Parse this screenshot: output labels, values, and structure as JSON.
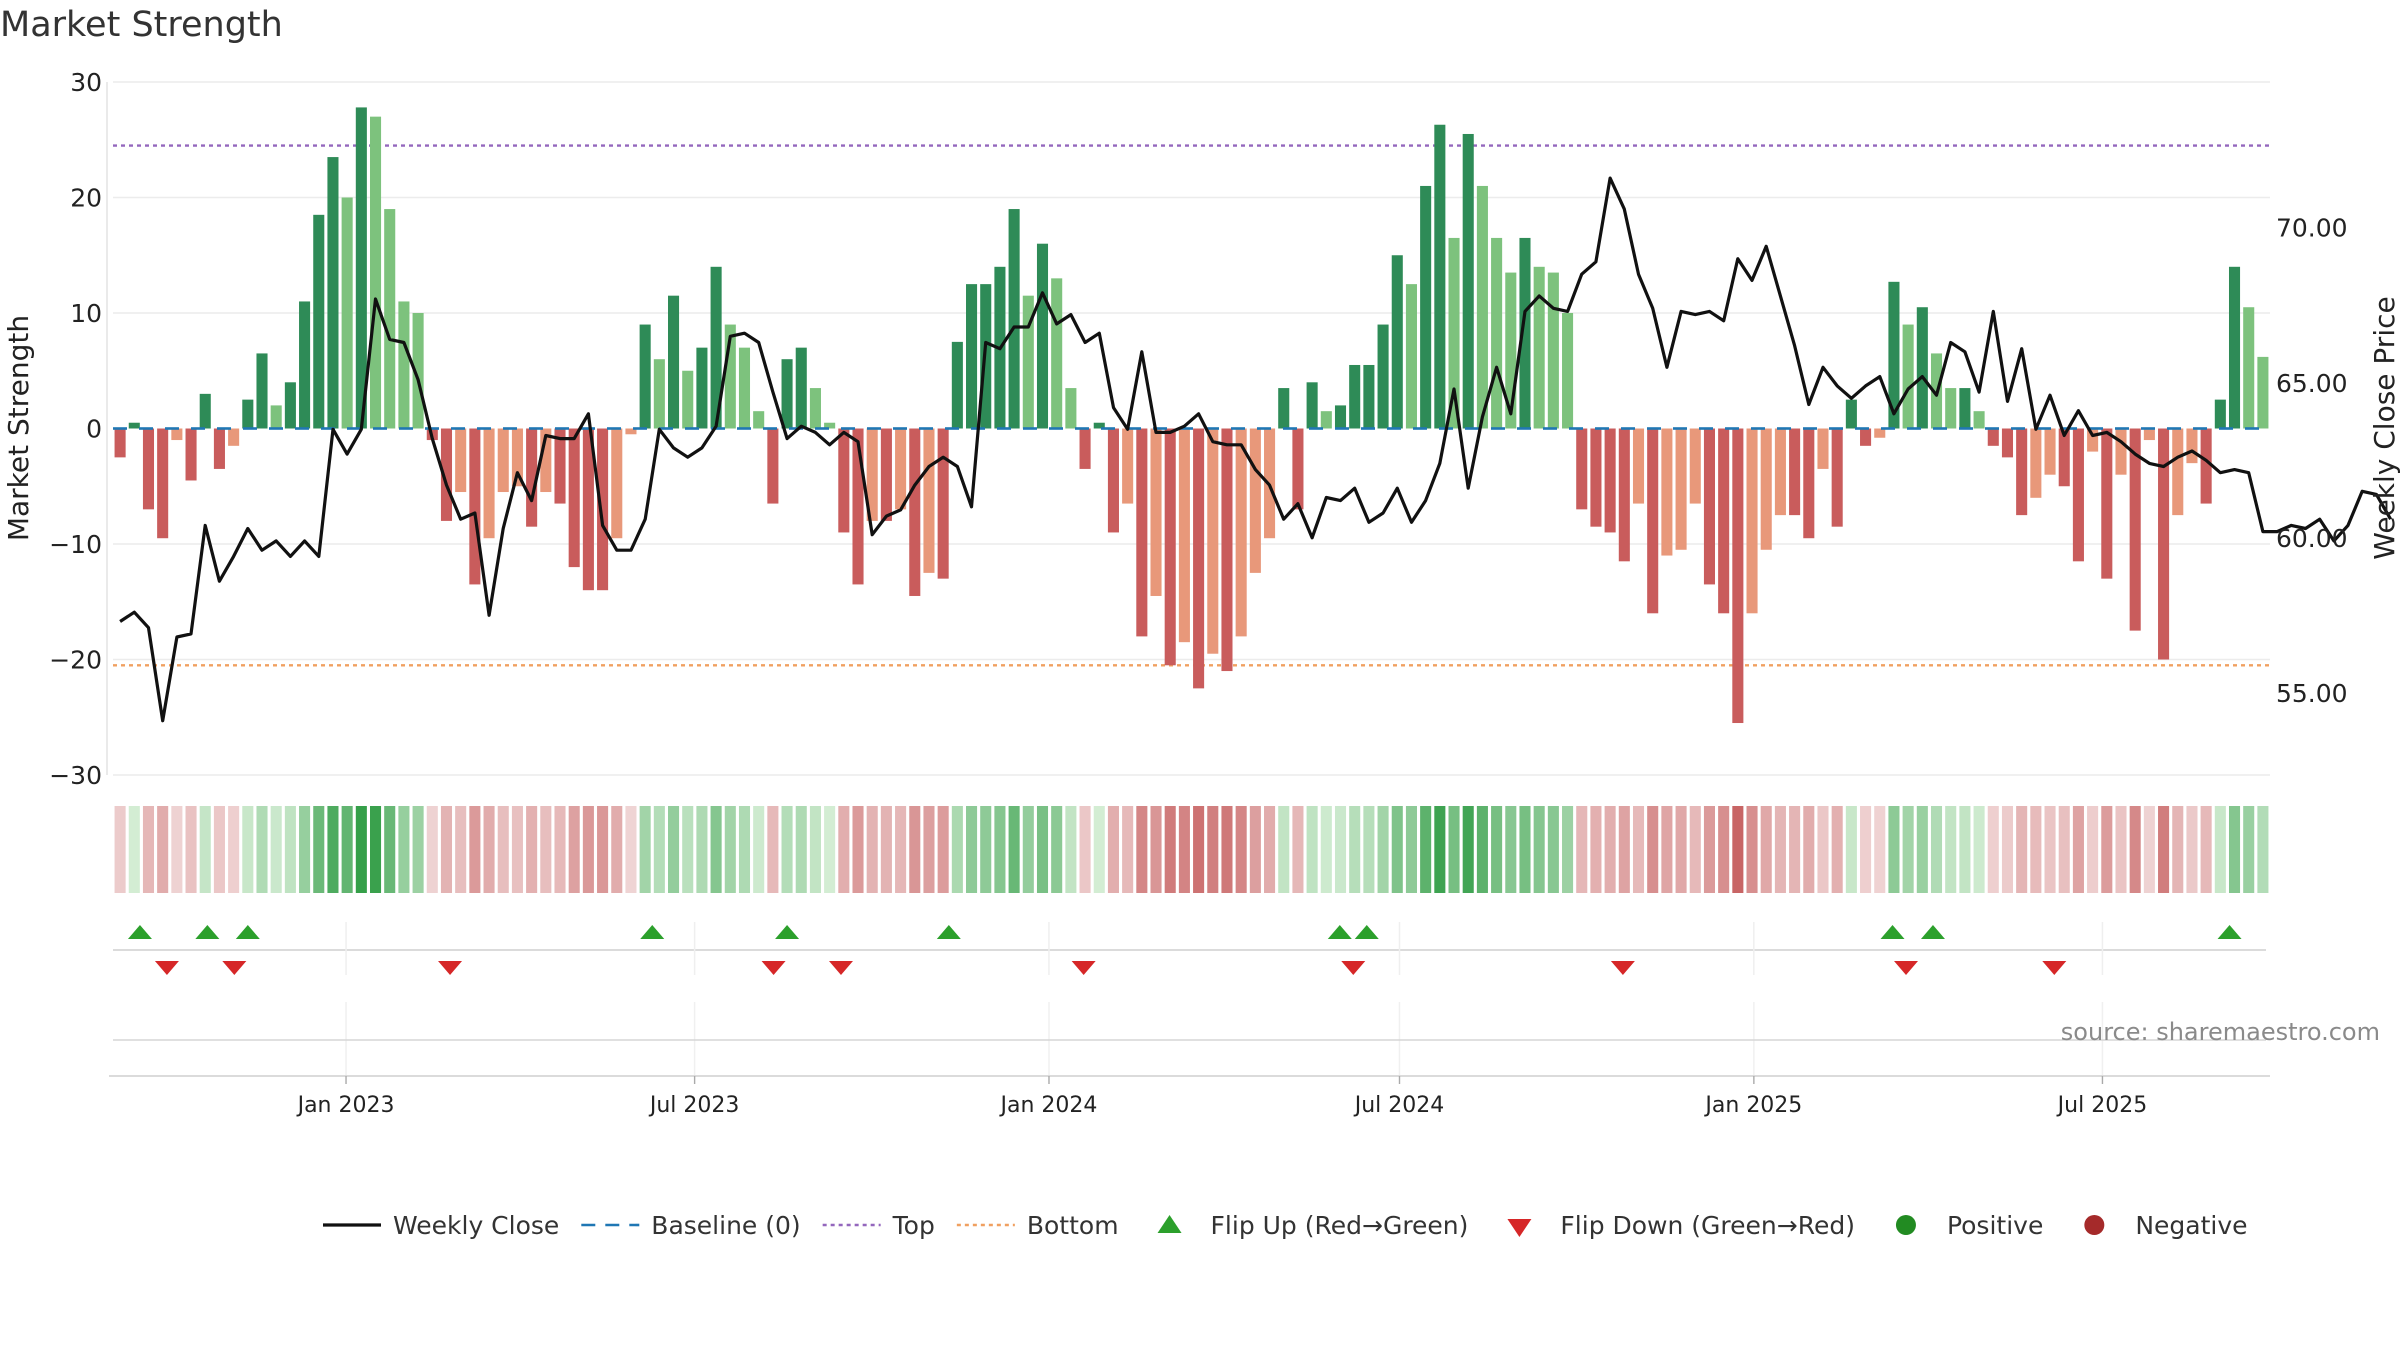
{
  "chart_data": {
    "type": "bar+line",
    "title": "Market Strength",
    "ylabel_left": "Market Strength",
    "ylabel_right": "Weekly Close Price",
    "source": "source: sharemaestro.com",
    "yticks_left": [
      "30",
      "20",
      "10",
      "0",
      "−10",
      "−20",
      "−30"
    ],
    "ylim_left": [
      -30,
      30
    ],
    "yticks_right": [
      "70.00",
      "65.00",
      "60.00",
      "55.00"
    ],
    "ylim_right": [
      52.35,
      74.7
    ],
    "x_start": "2022-09-02",
    "x_end": "2025-09-26",
    "x_ticks": [
      {
        "date": "2023-01-01",
        "label": "Jan 2023"
      },
      {
        "date": "2023-07-01",
        "label": "Jul 2023"
      },
      {
        "date": "2024-01-01",
        "label": "Jan 2024"
      },
      {
        "date": "2024-07-01",
        "label": "Jul 2024"
      },
      {
        "date": "2025-01-01",
        "label": "Jan 2025"
      },
      {
        "date": "2025-07-01",
        "label": "Jul 2025"
      }
    ],
    "top_level": 24.5,
    "bottom_level": -20.5,
    "strength": [
      -2.5,
      0.5,
      -7,
      -9.5,
      -1,
      -4.5,
      3,
      -3.5,
      -1.5,
      2.5,
      6.5,
      2,
      4,
      11,
      18.5,
      23.5,
      20,
      27.8,
      27,
      19,
      11,
      10,
      -1,
      -8,
      -5.5,
      -13.5,
      -9.5,
      -5.5,
      -5,
      -8.5,
      -5.5,
      -6.5,
      -12,
      -14,
      -14,
      -9.5,
      -0.5,
      9,
      6,
      11.5,
      5,
      7,
      14,
      9,
      7,
      1.5,
      -6.5,
      6,
      7,
      3.5,
      0.5,
      -9,
      -13.5,
      -8,
      -8,
      -7,
      -14.5,
      -12.5,
      -13,
      7.5,
      12.5,
      12.5,
      14,
      19,
      11.5,
      16,
      13,
      3.5,
      -3.5,
      0.5,
      -9,
      -6.5,
      -18,
      -14.5,
      -20.5,
      -18.5,
      -22.5,
      -19.5,
      -21,
      -18,
      -12.5,
      -9.5,
      3.5,
      -7,
      4,
      1.5,
      2,
      5.5,
      5.5,
      9,
      15,
      12.5,
      21,
      26.3,
      16.5,
      25.5,
      21,
      16.5,
      13.5,
      16.5,
      14,
      13.5,
      10,
      -7,
      -8.5,
      -9,
      -11.5,
      -6.5,
      -16,
      -11,
      -10.5,
      -6.5,
      -13.5,
      -16,
      -25.5,
      -16,
      -10.5,
      -7.5,
      -7.5,
      -9.5,
      -3.5,
      -8.5,
      2.5,
      -1.5,
      -0.8,
      12.7,
      9,
      10.5,
      6.5,
      3.5,
      3.5,
      1.5,
      -1.5,
      -2.5,
      -7.5,
      -6,
      -4,
      -5,
      -11.5,
      -2,
      -13,
      -4,
      -17.5,
      -1,
      -20,
      -7.5,
      -3,
      -6.5,
      2.5,
      14,
      10.5,
      6.2
    ],
    "weekly_close": [
      57.3,
      57.6,
      57.1,
      54.1,
      56.8,
      56.9,
      60.4,
      58.6,
      59.4,
      60.3,
      59.6,
      59.9,
      59.4,
      59.9,
      59.4,
      63.5,
      62.7,
      63.5,
      67.7,
      66.4,
      66.3,
      65.1,
      63.2,
      61.7,
      60.6,
      60.8,
      57.5,
      60.3,
      62.1,
      61.2,
      63.3,
      63.2,
      63.2,
      64.0,
      60.4,
      59.6,
      59.6,
      60.6,
      63.5,
      62.9,
      62.6,
      62.9,
      63.6,
      66.5,
      66.6,
      66.3,
      64.7,
      63.2,
      63.6,
      63.4,
      63.0,
      63.4,
      63.1,
      60.1,
      60.7,
      60.9,
      61.7,
      62.3,
      62.6,
      62.3,
      61.0,
      66.3,
      66.1,
      66.8,
      66.8,
      67.9,
      66.9,
      67.2,
      66.3,
      66.6,
      64.2,
      63.5,
      66.0,
      63.4,
      63.4,
      63.6,
      64.0,
      63.1,
      63.0,
      63.0,
      62.2,
      61.7,
      60.6,
      61.1,
      60.0,
      61.3,
      61.2,
      61.6,
      60.5,
      60.8,
      61.6,
      60.5,
      61.2,
      62.4,
      64.8,
      61.6,
      63.9,
      65.5,
      64.0,
      67.3,
      67.8,
      67.4,
      67.3,
      68.5,
      68.9,
      71.6,
      70.6,
      68.5,
      67.4,
      65.5,
      67.3,
      67.2,
      67.3,
      67.0,
      69.0,
      68.3,
      69.4,
      67.8,
      66.2,
      64.3,
      65.5,
      64.9,
      64.5,
      64.9,
      65.2,
      64.0,
      64.8,
      65.2,
      64.6,
      66.3,
      66.0,
      64.7,
      67.3,
      64.4,
      66.1,
      63.5,
      64.6,
      63.3,
      64.1,
      63.3,
      63.4,
      63.1,
      62.7,
      62.4,
      62.3,
      62.6,
      62.8,
      62.5,
      62.1,
      62.2,
      62.1,
      60.2,
      60.2,
      60.4,
      60.3,
      60.6,
      59.9,
      60.4,
      61.5,
      61.4,
      60.6
    ],
    "flip_up": [
      "2022-09-16",
      "2022-10-21",
      "2022-11-11",
      "2023-06-09",
      "2023-08-18",
      "2023-11-10",
      "2024-05-31",
      "2024-06-14",
      "2025-03-14",
      "2025-04-04",
      "2025-09-05"
    ],
    "flip_down": [
      "2022-09-30",
      "2022-11-04",
      "2023-02-24",
      "2023-08-11",
      "2023-09-15",
      "2024-01-19",
      "2024-06-07",
      "2024-10-25",
      "2025-03-21",
      "2025-06-06"
    ],
    "colors": {
      "pos_strong": "#2e8b57",
      "pos_light": "#7dc27d",
      "neg_strong": "#c95c5c",
      "neg_light": "#e8987a",
      "close_line": "#111111",
      "baseline": "#1f77b4",
      "top": "#9467bd",
      "bottom": "#f0a060",
      "flip_up": "#2ca02c",
      "flip_down": "#d62728",
      "positive_dot": "#228b22",
      "negative_dot": "#a52a2a"
    },
    "legend": [
      {
        "label": "Weekly Close",
        "kind": "line"
      },
      {
        "label": "Baseline (0)",
        "kind": "dashed"
      },
      {
        "label": "Top",
        "kind": "dotted-top"
      },
      {
        "label": "Bottom",
        "kind": "dotted-bottom"
      },
      {
        "label": "Flip Up (Red→Green)",
        "kind": "tri-up"
      },
      {
        "label": "Flip Down (Green→Red)",
        "kind": "tri-down"
      },
      {
        "label": "Positive",
        "kind": "dot-pos"
      },
      {
        "label": "Negative",
        "kind": "dot-neg"
      }
    ]
  }
}
